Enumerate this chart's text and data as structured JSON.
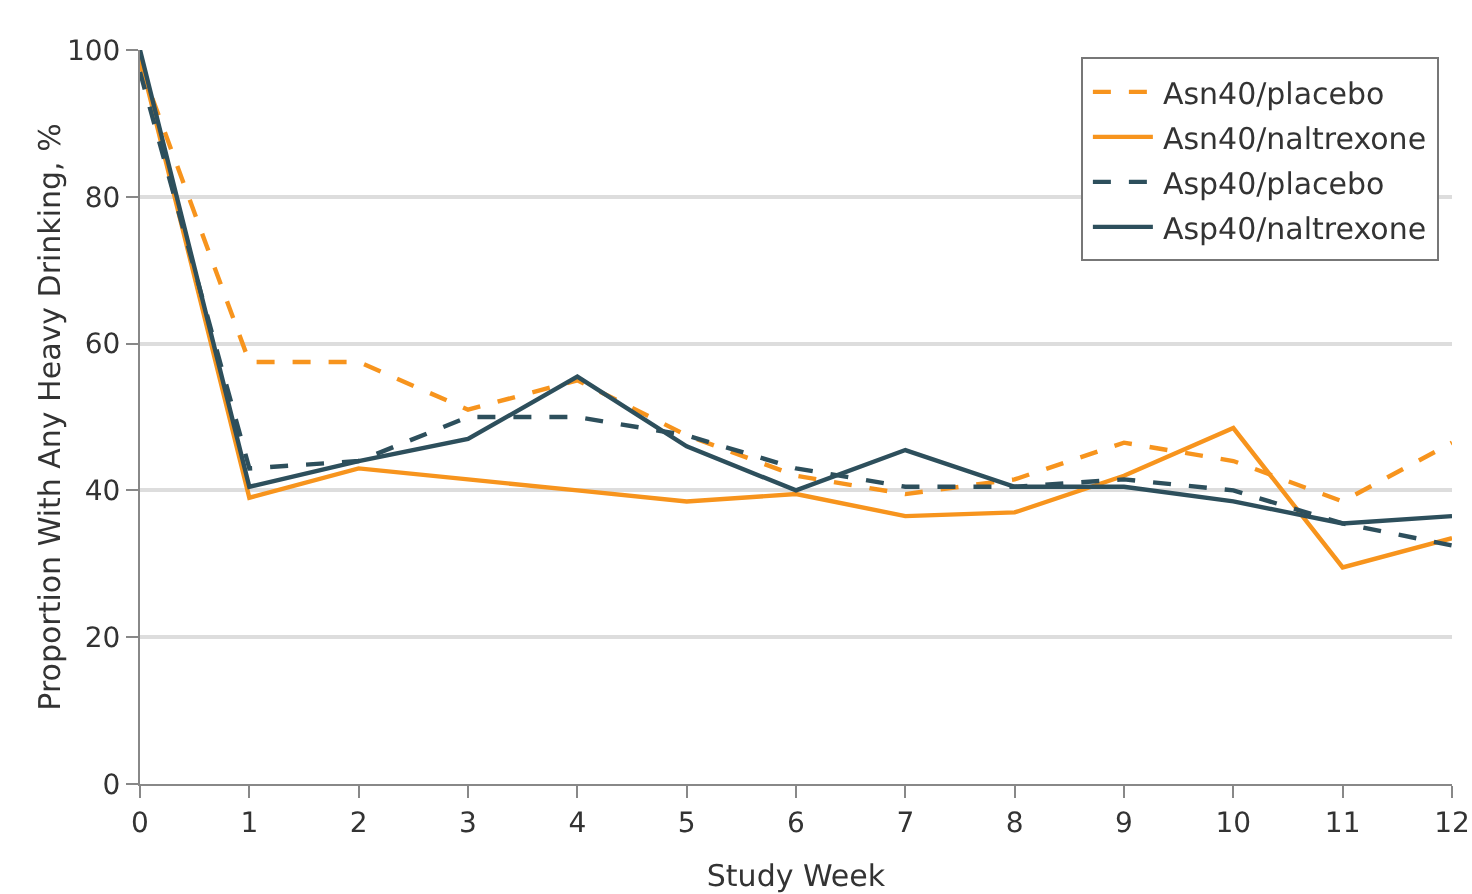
{
  "chart_data": {
    "type": "line",
    "xlabel": "Study Week",
    "ylabel": "Proportion With Any Heavy Drinking, %",
    "x": [
      0,
      1,
      2,
      3,
      4,
      5,
      6,
      7,
      8,
      9,
      10,
      11,
      12
    ],
    "series": [
      {
        "name": "Asn40/placebo",
        "color": "#f7941d",
        "line_style": "dashed",
        "values": [
          98,
          57.5,
          57.5,
          51,
          55,
          47.5,
          42,
          39.5,
          41.5,
          46.5,
          44,
          38.5,
          46.5
        ]
      },
      {
        "name": "Asn40/naltrexone",
        "color": "#f7941d",
        "line_style": "solid",
        "values": [
          99,
          39,
          43,
          41.5,
          40,
          38.5,
          39.5,
          36.5,
          37,
          42,
          48.5,
          29.5,
          33.5
        ]
      },
      {
        "name": "Asp40/placebo",
        "color": "#2d4f5c",
        "line_style": "dashed",
        "values": [
          97,
          43,
          44,
          50,
          50,
          47.5,
          43,
          40.5,
          40.5,
          41.5,
          40,
          35.5,
          32.5
        ]
      },
      {
        "name": "Asp40/naltrexone",
        "color": "#2d4f5c",
        "line_style": "solid",
        "values": [
          100,
          40.5,
          44,
          47,
          55.5,
          46,
          40,
          45.5,
          40.5,
          40.5,
          38.5,
          35.5,
          36.5
        ]
      }
    ],
    "xlim": [
      0,
      12
    ],
    "xticks": [
      0,
      1,
      2,
      3,
      4,
      5,
      6,
      7,
      8,
      9,
      10,
      11,
      12
    ],
    "ylim": [
      0,
      100
    ],
    "yticks": [
      0,
      20,
      40,
      60,
      80,
      100
    ],
    "grid": "y",
    "legend": "top right",
    "marker": "none"
  }
}
